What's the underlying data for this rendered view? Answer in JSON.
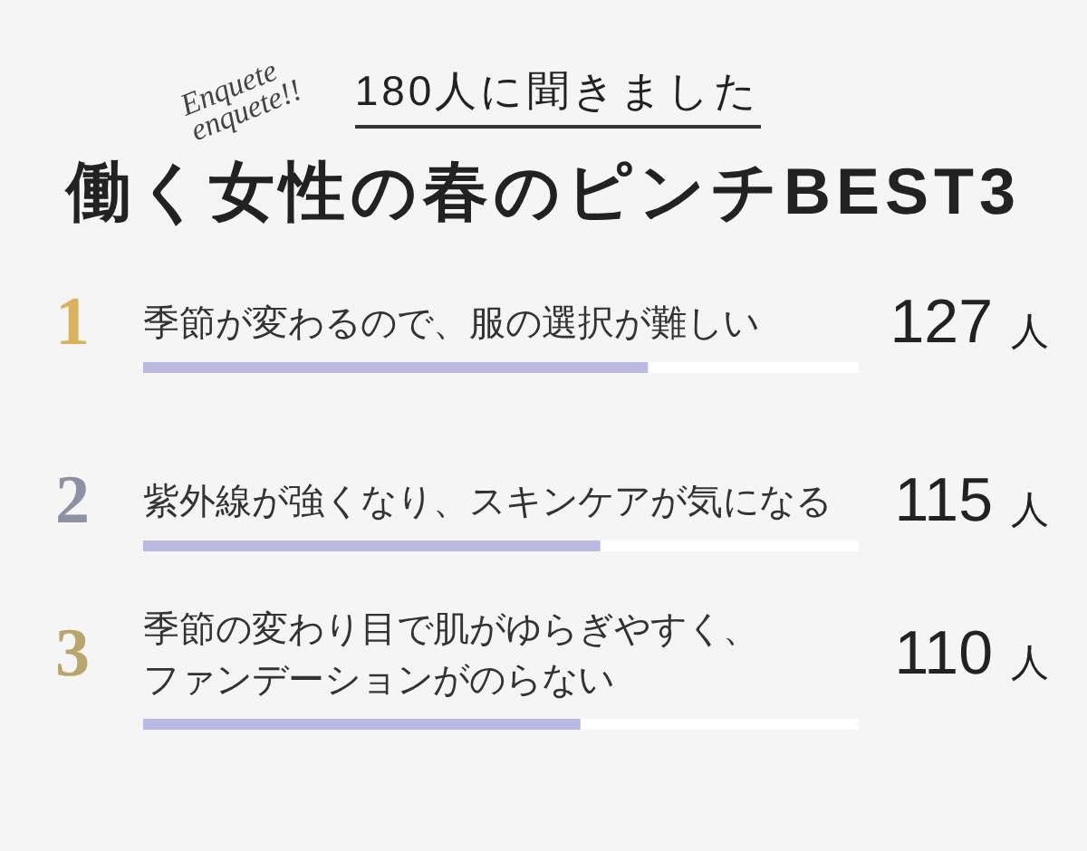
{
  "chart_data": {
    "type": "bar",
    "orientation": "horizontal",
    "title": "働く女性の春のピンチBEST3",
    "subtitle": "180人に聞きました",
    "categories": [
      "季節が変わるので、服の選択が難しい",
      "紫外線が強くなり、スキンケアが気になる",
      "季節の変わり目で肌がゆらぎやすく、ファンデーションがのらない"
    ],
    "values": [
      127,
      115,
      110
    ],
    "value_labels": [
      "127 人",
      "115 人",
      "110 人"
    ],
    "color": "#b9b9e1",
    "xlim": [
      0,
      180
    ],
    "tick_labels": "y",
    "annotations": [
      "Enquete enquete!!",
      "1",
      "2",
      "3"
    ]
  }
}
